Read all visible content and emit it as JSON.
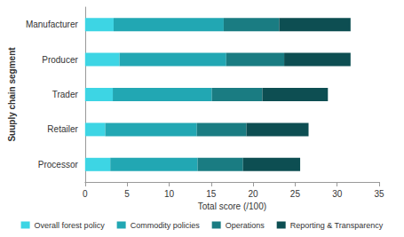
{
  "chart_data": {
    "type": "bar",
    "orientation": "horizontal",
    "stacked": true,
    "x_label": "Total score (/100)",
    "y_label": "Suuply chain segment",
    "categories": [
      "Manufacturer",
      "Producer",
      "Trader",
      "Retailer",
      "Processor"
    ],
    "series": [
      {
        "name": "Overall forest policy",
        "color": "#3dd5e4",
        "values": [
          3.4,
          4.1,
          3.3,
          2.4,
          3.0
        ]
      },
      {
        "name": "Commodity policies",
        "color": "#22a7b3",
        "values": [
          13.1,
          12.7,
          11.8,
          10.9,
          10.4
        ]
      },
      {
        "name": "Operations",
        "color": "#1a7c82",
        "values": [
          6.6,
          6.9,
          6.0,
          5.9,
          5.4
        ]
      },
      {
        "name": "Reporting & Transparency",
        "color": "#0d4e52",
        "values": [
          8.5,
          7.9,
          7.8,
          7.4,
          6.8
        ]
      }
    ],
    "xlim": [
      0,
      35
    ],
    "xticks": [
      0,
      5,
      10,
      15,
      20,
      25,
      30,
      35
    ],
    "grid": false,
    "legend": "bottom"
  }
}
